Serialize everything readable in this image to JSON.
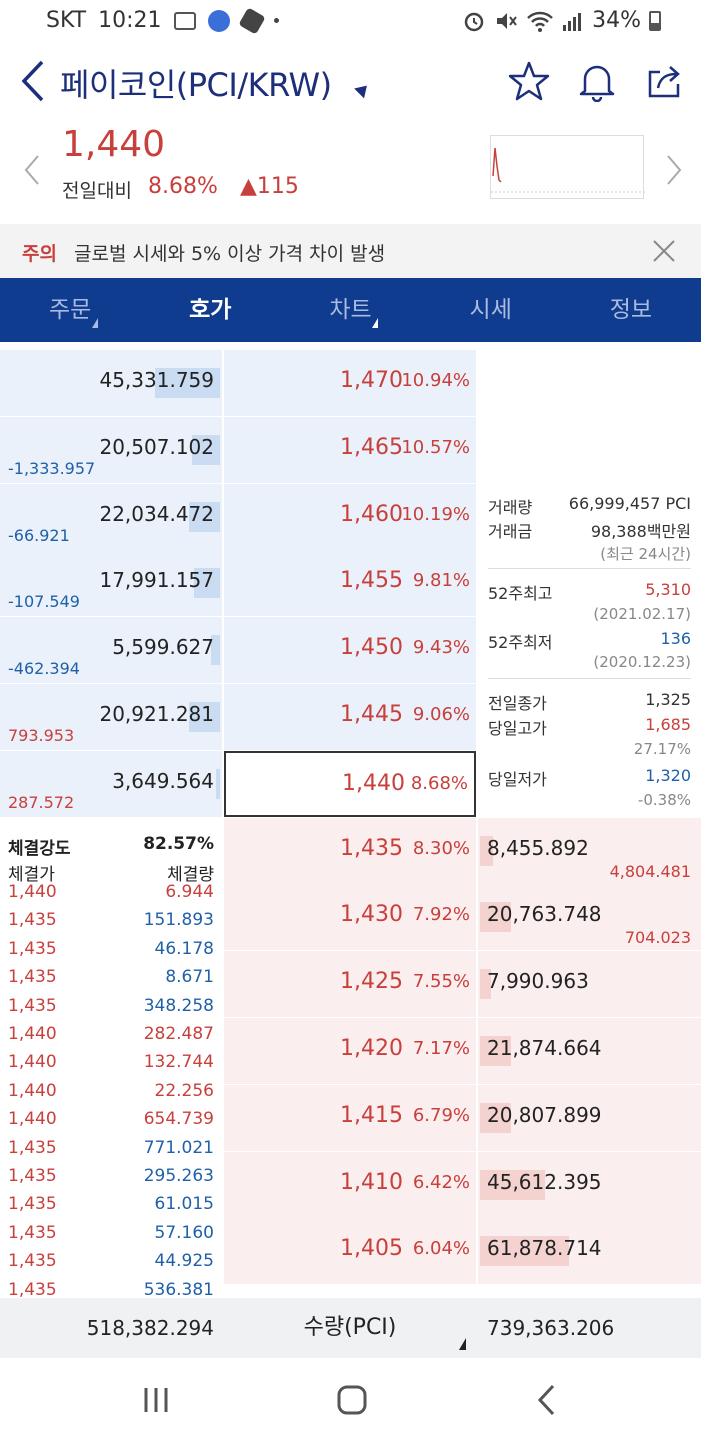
{
  "status_bar": {
    "carrier": "SKT",
    "time": "10:21",
    "battery": "34%"
  },
  "header": {
    "title": "페이코인(PCI/KRW)"
  },
  "summary": {
    "price": "1,440",
    "change_label": "전일대비",
    "change_rate": "8.68%",
    "change_amount": "▲115"
  },
  "notice": {
    "tag": "주의",
    "message": "글로벌 시세와 5% 이상 가격 차이 발생"
  },
  "tabs": [
    "주문",
    "호가",
    "차트",
    "시세",
    "정보"
  ],
  "asks": [
    {
      "qty": "45,331.759",
      "diff": "",
      "diff_color": "",
      "price": "1,470",
      "pct": "10.94%",
      "bar": 0.3
    },
    {
      "qty": "20,507.102",
      "diff": "-1,333.957",
      "diff_color": "blue",
      "price": "1,465",
      "pct": "10.57%",
      "bar": 0.13
    },
    {
      "qty": "22,034.472",
      "diff": "-66.921",
      "diff_color": "blue",
      "price": "1,460",
      "pct": "10.19%",
      "bar": 0.14
    },
    {
      "qty": "17,991.157",
      "diff": "-107.549",
      "diff_color": "blue",
      "price": "1,455",
      "pct": "9.81%",
      "bar": 0.12
    },
    {
      "qty": "5,599.627",
      "diff": "-462.394",
      "diff_color": "blue",
      "price": "1,450",
      "pct": "9.43%",
      "bar": 0.04
    },
    {
      "qty": "20,921.281",
      "diff": "793.953",
      "diff_color": "red",
      "price": "1,445",
      "pct": "9.06%",
      "bar": 0.14
    },
    {
      "qty": "3,649.564",
      "diff": "287.572",
      "diff_color": "red",
      "price": "1,440",
      "pct": "8.68%",
      "bar": 0.02
    }
  ],
  "bids": [
    {
      "price": "1,435",
      "pct": "8.30%",
      "qty": "8,455.892",
      "diff": "4,804.481",
      "diff_color": "red",
      "bar": 0.06
    },
    {
      "price": "1,430",
      "pct": "7.92%",
      "qty": "20,763.748",
      "diff": "704.023",
      "diff_color": "red",
      "bar": 0.14
    },
    {
      "price": "1,425",
      "pct": "7.55%",
      "qty": "7,990.963",
      "diff": "",
      "diff_color": "",
      "bar": 0.05
    },
    {
      "price": "1,420",
      "pct": "7.17%",
      "qty": "21,874.664",
      "diff": "",
      "diff_color": "",
      "bar": 0.14
    },
    {
      "price": "1,415",
      "pct": "6.79%",
      "qty": "20,807.899",
      "diff": "",
      "diff_color": "",
      "bar": 0.14
    },
    {
      "price": "1,410",
      "pct": "6.42%",
      "qty": "45,612.395",
      "diff": "",
      "diff_color": "",
      "bar": 0.3
    },
    {
      "price": "1,405",
      "pct": "6.04%",
      "qty": "61,878.714",
      "diff": "",
      "diff_color": "",
      "bar": 0.41
    }
  ],
  "info": {
    "volume_label": "거래량",
    "volume_value": "66,999,457 PCI",
    "amount_label": "거래금",
    "amount_value": "98,388백만원",
    "period": "(최근 24시간)",
    "high52_label": "52주최고",
    "high52_value": "5,310",
    "high52_date": "(2021.02.17)",
    "low52_label": "52주최저",
    "low52_value": "136",
    "low52_date": "(2020.12.23)",
    "prev_close_label": "전일종가",
    "prev_close_value": "1,325",
    "day_high_label": "당일고가",
    "day_high_value": "1,685",
    "day_high_pct": "27.17%",
    "day_low_label": "당일저가",
    "day_low_value": "1,320",
    "day_low_pct": "-0.38%"
  },
  "trades": {
    "strength_label": "체결강도",
    "strength_value": "82.57%",
    "price_header": "체결가",
    "volume_header": "체결량",
    "rows": [
      {
        "p": "1,440",
        "v": "6.944",
        "c": "red"
      },
      {
        "p": "1,435",
        "v": "151.893",
        "c": "blue"
      },
      {
        "p": "1,435",
        "v": "46.178",
        "c": "blue"
      },
      {
        "p": "1,435",
        "v": "8.671",
        "c": "blue"
      },
      {
        "p": "1,435",
        "v": "348.258",
        "c": "blue"
      },
      {
        "p": "1,440",
        "v": "282.487",
        "c": "red"
      },
      {
        "p": "1,440",
        "v": "132.744",
        "c": "red"
      },
      {
        "p": "1,440",
        "v": "22.256",
        "c": "red"
      },
      {
        "p": "1,440",
        "v": "654.739",
        "c": "red"
      },
      {
        "p": "1,435",
        "v": "771.021",
        "c": "blue"
      },
      {
        "p": "1,435",
        "v": "295.263",
        "c": "blue"
      },
      {
        "p": "1,435",
        "v": "61.015",
        "c": "blue"
      },
      {
        "p": "1,435",
        "v": "57.160",
        "c": "blue"
      },
      {
        "p": "1,435",
        "v": "44.925",
        "c": "blue"
      },
      {
        "p": "1,435",
        "v": "536.381",
        "c": "blue"
      }
    ]
  },
  "footer": {
    "ask_total": "518,382.294",
    "unit_label": "수량(PCI)",
    "bid_total": "739,363.206"
  }
}
